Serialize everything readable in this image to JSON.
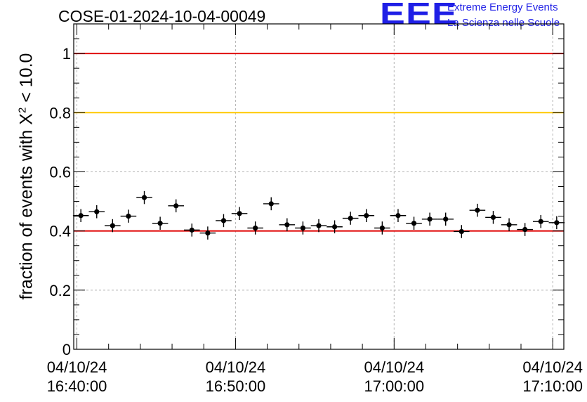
{
  "header": {
    "run_title": "COSE-01-2024-10-04-00049",
    "logo_mark": "EEE",
    "logo_line1": "Extreme Energy Events",
    "logo_line2": "La Scienza nelle Scuole"
  },
  "colors": {
    "logo": "#1f1fe6",
    "ref_line_red": "#e00000",
    "ref_line_yellow": "#ffc800",
    "markers": "#000000",
    "grid": "#b4b4b4"
  },
  "chart_data": {
    "type": "scatter",
    "title": "COSE-01-2024-10-04-00049",
    "ylabel_prefix": "fraction of events with X",
    "ylabel_sup": "2",
    "ylabel_suffix": " < 10.0",
    "xlabel": "",
    "x_axis_kind": "time",
    "xlim": [
      "16:39:48",
      "17:10:42"
    ],
    "ylim": [
      0,
      1.1
    ],
    "grid": true,
    "x_ticks": [
      {
        "time": "16:40:00",
        "line1": "04/10/24",
        "line2": "16:40:00"
      },
      {
        "time": "16:50:00",
        "line1": "04/10/24",
        "line2": "16:50:00"
      },
      {
        "time": "17:00:00",
        "line1": "04/10/24",
        "line2": "17:00:00"
      },
      {
        "time": "17:10:00",
        "line1": "04/10/24",
        "line2": "17:10:00"
      }
    ],
    "y_ticks": [
      "0",
      "0.2",
      "0.4",
      "0.6",
      "0.8",
      "1"
    ],
    "y_tick_values": [
      0,
      0.2,
      0.4,
      0.6,
      0.8,
      1.0
    ],
    "reference_lines": [
      {
        "y": 1.0,
        "color": "#e00000"
      },
      {
        "y": 0.8,
        "color": "#ffc800"
      },
      {
        "y": 0.4,
        "color": "#e00000"
      }
    ],
    "x_bin_halfwidth_min": 0.5,
    "y_error": 0.022,
    "points": [
      {
        "x": "16:40:15",
        "y": 0.452
      },
      {
        "x": "16:41:15",
        "y": 0.465
      },
      {
        "x": "16:42:15",
        "y": 0.418
      },
      {
        "x": "16:43:15",
        "y": 0.45
      },
      {
        "x": "16:44:15",
        "y": 0.513
      },
      {
        "x": "16:45:15",
        "y": 0.426
      },
      {
        "x": "16:46:15",
        "y": 0.485
      },
      {
        "x": "16:47:15",
        "y": 0.403
      },
      {
        "x": "16:48:15",
        "y": 0.393
      },
      {
        "x": "16:49:15",
        "y": 0.435
      },
      {
        "x": "16:50:15",
        "y": 0.459
      },
      {
        "x": "16:51:15",
        "y": 0.41
      },
      {
        "x": "16:52:15",
        "y": 0.492
      },
      {
        "x": "16:53:15",
        "y": 0.421
      },
      {
        "x": "16:54:15",
        "y": 0.41
      },
      {
        "x": "16:55:15",
        "y": 0.418
      },
      {
        "x": "16:56:15",
        "y": 0.414
      },
      {
        "x": "16:57:15",
        "y": 0.443
      },
      {
        "x": "16:58:15",
        "y": 0.452
      },
      {
        "x": "16:59:15",
        "y": 0.41
      },
      {
        "x": "17:00:15",
        "y": 0.452
      },
      {
        "x": "17:01:15",
        "y": 0.426
      },
      {
        "x": "17:02:15",
        "y": 0.44
      },
      {
        "x": "17:03:15",
        "y": 0.44
      },
      {
        "x": "17:04:15",
        "y": 0.398
      },
      {
        "x": "17:05:15",
        "y": 0.47
      },
      {
        "x": "17:06:15",
        "y": 0.446
      },
      {
        "x": "17:07:15",
        "y": 0.421
      },
      {
        "x": "17:08:15",
        "y": 0.405
      },
      {
        "x": "17:09:15",
        "y": 0.432
      },
      {
        "x": "17:10:15",
        "y": 0.428
      }
    ]
  }
}
